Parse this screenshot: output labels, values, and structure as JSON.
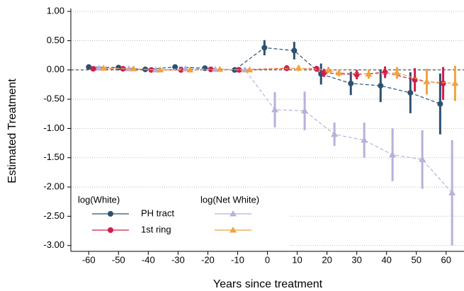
{
  "chart_data": {
    "type": "errorbar-line",
    "xlabel": "Years since treatment",
    "ylabel": "Estimated Treatment",
    "xlim": [
      -66,
      66
    ],
    "ylim": [
      -3.1,
      1.05
    ],
    "xticks": [
      -60,
      -50,
      -40,
      -30,
      -20,
      -10,
      0,
      10,
      20,
      30,
      40,
      50,
      60
    ],
    "yticks": [
      {
        "value": 1,
        "label": "1.00"
      },
      {
        "value": 0.5,
        "label": "0.50"
      },
      {
        "value": 0,
        "label": "0.00"
      },
      {
        "value": -0.5,
        "label": "-0.50"
      },
      {
        "value": -1,
        "label": "-1.00"
      },
      {
        "value": -1.5,
        "label": "-1.50"
      },
      {
        "value": -2,
        "label": "-2.00"
      },
      {
        "value": -2.5,
        "label": "-2.50"
      },
      {
        "value": -3,
        "label": "-3.00"
      }
    ],
    "grid": true,
    "reference_y": 0,
    "legend_groups": [
      "log(White)",
      "log(Net White)"
    ],
    "series": [
      {
        "name": "PH tract",
        "group": 0,
        "marker": "circle",
        "color": "#2d5170",
        "x": [
          -60,
          -50,
          -41,
          -31,
          -21,
          -11,
          -1,
          9,
          18,
          28,
          38,
          48,
          58
        ],
        "values": [
          0.05,
          0.04,
          0.01,
          0.05,
          0.03,
          0.0,
          0.38,
          0.33,
          -0.07,
          -0.23,
          -0.27,
          -0.39,
          -0.58
        ],
        "errors": [
          0.03,
          0.02,
          0.02,
          0.03,
          0.02,
          0.02,
          0.13,
          0.15,
          0.18,
          0.2,
          0.28,
          0.35,
          0.52
        ]
      },
      {
        "name": "1st ring",
        "group": 0,
        "marker": "circle",
        "color": "#cf1f4a",
        "x": [
          -58.5,
          -48.5,
          -39,
          -29,
          -19,
          -9.5,
          6.5,
          16.5,
          19,
          30,
          39.5,
          49.5,
          59
        ],
        "values": [
          0.02,
          0.02,
          0.0,
          0.0,
          0.01,
          0.0,
          0.03,
          0.02,
          -0.05,
          -0.08,
          -0.04,
          -0.17,
          -0.23
        ],
        "errors": [
          0.02,
          0.02,
          0.02,
          0.02,
          0.02,
          0.02,
          0.05,
          0.05,
          0.07,
          0.08,
          0.1,
          0.2,
          0.28
        ]
      },
      {
        "group": 1,
        "marker": "triangle",
        "color": "#b7b0da",
        "x": [
          -56.5,
          -46.5,
          -37.5,
          -27.5,
          -17.5,
          -7.5,
          2.5,
          12.5,
          22.5,
          32.5,
          42,
          52,
          62
        ],
        "values": [
          0.03,
          0.02,
          0.0,
          0.02,
          0.01,
          0.0,
          -0.68,
          -0.7,
          -1.1,
          -1.2,
          -1.45,
          -1.53,
          -2.1
        ],
        "errors": [
          0.03,
          0.03,
          0.03,
          0.03,
          0.03,
          0.03,
          0.3,
          0.33,
          0.2,
          0.3,
          0.45,
          0.5,
          0.9
        ]
      },
      {
        "group": 1,
        "marker": "triangle",
        "color": "#f0a33f",
        "x": [
          -55,
          -45,
          -36,
          -26,
          -16,
          -6,
          10.5,
          20.5,
          24,
          34,
          43.5,
          53.5,
          63
        ],
        "values": [
          0.03,
          0.02,
          0.0,
          0.0,
          0.01,
          0.0,
          0.03,
          0.0,
          -0.05,
          -0.07,
          -0.05,
          -0.2,
          -0.23
        ],
        "errors": [
          0.02,
          0.02,
          0.02,
          0.02,
          0.02,
          0.02,
          0.05,
          0.05,
          0.06,
          0.08,
          0.1,
          0.22,
          0.3
        ]
      }
    ]
  }
}
